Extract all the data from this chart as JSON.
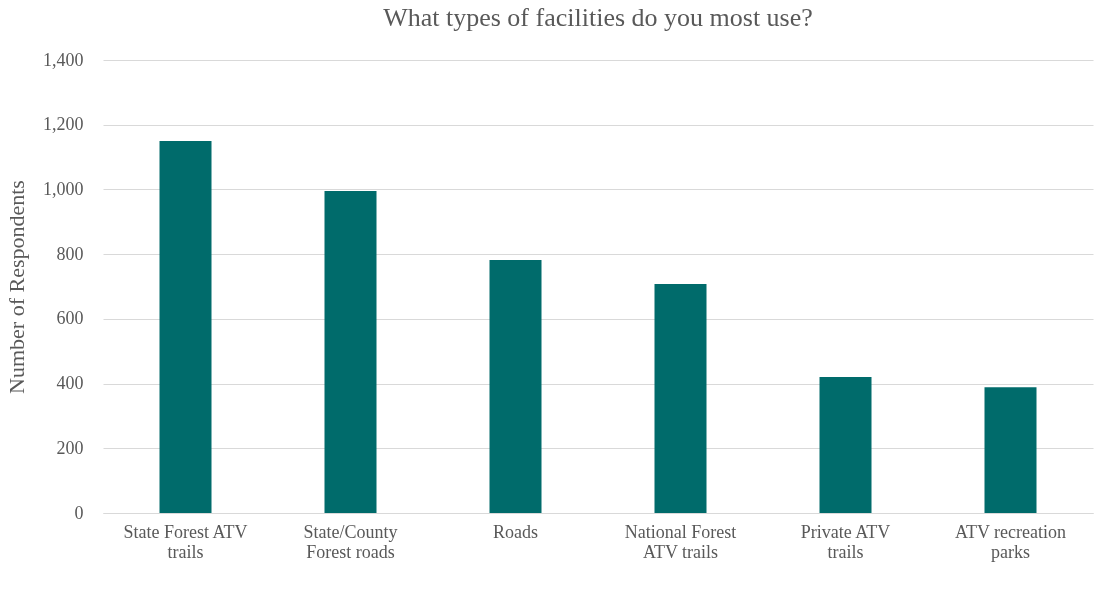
{
  "chart_data": {
    "type": "bar",
    "title": "What types of facilities do you most use?",
    "ylabel": "Number of Respondents",
    "categories": [
      "State Forest ATV trails",
      "State/County Forest roads",
      "Roads",
      "National Forest ATV trails",
      "Private ATV trails",
      "ATV recreation parks"
    ],
    "values": [
      1150,
      995,
      782,
      708,
      420,
      389
    ],
    "color": "#006b6b",
    "ylim": [
      0,
      1400
    ],
    "yticks": [
      {
        "value": 0,
        "label": "0"
      },
      {
        "value": 200,
        "label": "200"
      },
      {
        "value": 400,
        "label": "400"
      },
      {
        "value": 600,
        "label": "600"
      },
      {
        "value": 800,
        "label": "800"
      },
      {
        "value": 1000,
        "label": "1,000"
      },
      {
        "value": 1200,
        "label": "1,200"
      },
      {
        "value": 1400,
        "label": "1,400"
      }
    ],
    "grid": "y"
  }
}
